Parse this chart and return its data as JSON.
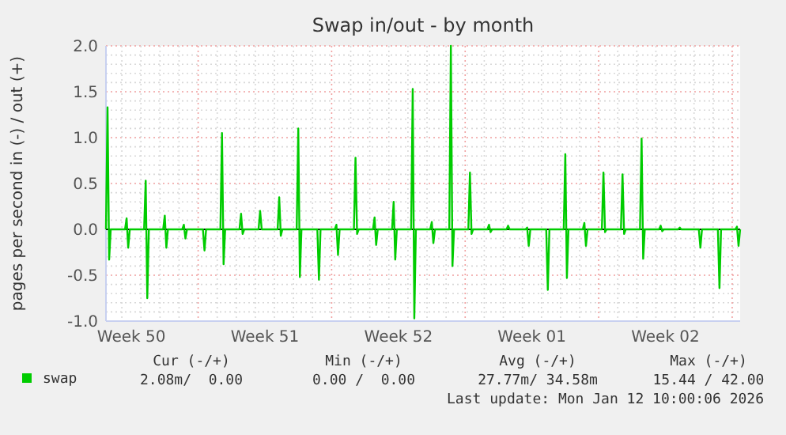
{
  "chart_data": {
    "type": "line",
    "title": "Swap in/out - by month",
    "ylabel": "pages per second in (-) / out (+)",
    "xlim": [
      "2025-12-10T04:00",
      "2026-01-12T10:00"
    ],
    "xticks": [
      {
        "value": "2025-12-11T12:00",
        "label": "Week 50"
      },
      {
        "value": "2025-12-18T12:00",
        "label": "Week 51"
      },
      {
        "value": "2025-12-25T12:00",
        "label": "Week 52"
      },
      {
        "value": "2026-01-01T12:00",
        "label": "Week 01"
      },
      {
        "value": "2026-01-08T12:00",
        "label": "Week 02"
      }
    ],
    "ylim": [
      -1,
      2
    ],
    "yticks": [
      {
        "value": -1,
        "label": "-1.0"
      },
      {
        "value": -0.5,
        "label": "-0.5"
      },
      {
        "value": 0,
        "label": "0.0"
      },
      {
        "value": 0.5,
        "label": "0.5"
      },
      {
        "value": 1,
        "label": "1.0"
      },
      {
        "value": 1.5,
        "label": "1.5"
      },
      {
        "value": 2,
        "label": "2.0"
      }
    ],
    "grid": true,
    "legend": "bottom left",
    "marker": "none",
    "line_style": "solid",
    "ref_lines": [
      {
        "axis": "y",
        "value": 0,
        "color": "#000000"
      }
    ],
    "annotations": [
      "Cur (-/+)",
      "Min (-/+)",
      "Avg (-/+)",
      "Max (-/+)",
      "2.08m/  0.00",
      "0.00 /  0.00",
      "27.77m/ 34.58m",
      "15.44 / 42.00",
      "Last update: Mon Jan 12 10:00:06 2026"
    ],
    "series": [
      {
        "name": "swap",
        "color": "#00cc00",
        "x": [
          "2025-12-10T04:00",
          "2025-12-10T06:00",
          "2025-12-10T08:00",
          "2025-12-10T10:00",
          "2025-12-11T04:00",
          "2025-12-11T06:00",
          "2025-12-11T08:00",
          "2025-12-11T10:00",
          "2025-12-12T04:00",
          "2025-12-12T06:00",
          "2025-12-12T08:00",
          "2025-12-12T10:00",
          "2025-12-13T04:00",
          "2025-12-13T06:00",
          "2025-12-13T08:00",
          "2025-12-13T10:00",
          "2025-12-14T04:00",
          "2025-12-14T06:00",
          "2025-12-14T08:00",
          "2025-12-14T10:00",
          "2025-12-15T04:00",
          "2025-12-15T06:00",
          "2025-12-15T08:00",
          "2025-12-15T10:00",
          "2025-12-16T04:00",
          "2025-12-16T06:00",
          "2025-12-16T08:00",
          "2025-12-16T10:00",
          "2025-12-17T04:00",
          "2025-12-17T06:00",
          "2025-12-17T08:00",
          "2025-12-17T10:00",
          "2025-12-18T04:00",
          "2025-12-18T06:00",
          "2025-12-18T08:00",
          "2025-12-18T10:00",
          "2025-12-19T04:00",
          "2025-12-19T06:00",
          "2025-12-19T08:00",
          "2025-12-19T10:00",
          "2025-12-20T04:00",
          "2025-12-20T06:00",
          "2025-12-20T08:00",
          "2025-12-20T10:00",
          "2025-12-21T04:00",
          "2025-12-21T06:00",
          "2025-12-21T08:00",
          "2025-12-21T10:00",
          "2025-12-22T04:00",
          "2025-12-22T06:00",
          "2025-12-22T08:00",
          "2025-12-22T10:00",
          "2025-12-23T04:00",
          "2025-12-23T06:00",
          "2025-12-23T08:00",
          "2025-12-23T10:00",
          "2025-12-24T04:00",
          "2025-12-24T06:00",
          "2025-12-24T08:00",
          "2025-12-24T10:00",
          "2025-12-25T04:00",
          "2025-12-25T06:00",
          "2025-12-25T08:00",
          "2025-12-25T10:00",
          "2025-12-26T04:00",
          "2025-12-26T06:00",
          "2025-12-26T08:00",
          "2025-12-26T10:00",
          "2025-12-27T04:00",
          "2025-12-27T06:00",
          "2025-12-27T08:00",
          "2025-12-27T10:00",
          "2025-12-28T04:00",
          "2025-12-28T06:00",
          "2025-12-28T08:00",
          "2025-12-28T10:00",
          "2025-12-29T04:00",
          "2025-12-29T06:00",
          "2025-12-29T08:00",
          "2025-12-29T10:00",
          "2025-12-30T04:00",
          "2025-12-30T06:00",
          "2025-12-30T08:00",
          "2025-12-30T10:00",
          "2025-12-31T04:00",
          "2025-12-31T06:00",
          "2025-12-31T08:00",
          "2025-12-31T10:00",
          "2026-01-01T04:00",
          "2026-01-01T06:00",
          "2026-01-01T08:00",
          "2026-01-01T10:00",
          "2026-01-02T04:00",
          "2026-01-02T06:00",
          "2026-01-02T08:00",
          "2026-01-02T10:00",
          "2026-01-03T04:00",
          "2026-01-03T06:00",
          "2026-01-03T08:00",
          "2026-01-03T10:00",
          "2026-01-04T04:00",
          "2026-01-04T06:00",
          "2026-01-04T08:00",
          "2026-01-04T10:00",
          "2026-01-05T04:00",
          "2026-01-05T06:00",
          "2026-01-05T08:00",
          "2026-01-05T10:00",
          "2026-01-06T04:00",
          "2026-01-06T06:00",
          "2026-01-06T08:00",
          "2026-01-06T10:00",
          "2026-01-07T04:00",
          "2026-01-07T06:00",
          "2026-01-07T08:00",
          "2026-01-07T10:00",
          "2026-01-08T04:00",
          "2026-01-08T06:00",
          "2026-01-08T08:00",
          "2026-01-08T10:00",
          "2026-01-09T04:00",
          "2026-01-09T06:00",
          "2026-01-09T08:00",
          "2026-01-09T10:00",
          "2026-01-10T04:00",
          "2026-01-10T06:00",
          "2026-01-10T08:00",
          "2026-01-10T10:00",
          "2026-01-11T04:00",
          "2026-01-11T06:00",
          "2026-01-11T08:00",
          "2026-01-11T10:00",
          "2026-01-12T04:00",
          "2026-01-12T06:00",
          "2026-01-12T08:00",
          "2026-01-12T10:00"
        ],
        "values": [
          0,
          1.33,
          -0.33,
          0,
          0,
          0.12,
          -0.2,
          0,
          0,
          0.53,
          -0.75,
          0,
          0,
          0.15,
          -0.2,
          0,
          0,
          0.05,
          -0.1,
          0,
          0,
          0,
          -0.23,
          0,
          0,
          1.05,
          -0.38,
          0,
          0,
          0.17,
          -0.05,
          0,
          0,
          0.2,
          0,
          0,
          0,
          0.35,
          -0.07,
          0,
          0,
          1.1,
          -0.52,
          0,
          0,
          0,
          -0.55,
          0,
          0,
          0.05,
          -0.28,
          0,
          0,
          0.78,
          -0.05,
          0,
          0,
          0.13,
          -0.17,
          0,
          0,
          0.3,
          -0.33,
          0,
          0,
          1.53,
          -0.97,
          0,
          0,
          0.08,
          -0.15,
          0,
          0,
          2.0,
          -0.4,
          0,
          0,
          0.62,
          -0.05,
          0,
          0,
          0.05,
          -0.03,
          0,
          0,
          0.04,
          0,
          0,
          0,
          0.02,
          -0.18,
          0,
          0,
          0,
          -0.66,
          0,
          0,
          0.82,
          -0.53,
          0,
          0,
          0.07,
          -0.18,
          0,
          0,
          0.62,
          -0.03,
          0,
          0,
          0.6,
          -0.05,
          0,
          0,
          0.99,
          -0.32,
          0,
          0,
          0.04,
          -0.02,
          0,
          0,
          0.02,
          0,
          0,
          0,
          0,
          -0.2,
          0,
          0,
          0,
          -0.64,
          0,
          0,
          0.03,
          -0.18,
          0
        ]
      }
    ]
  }
}
